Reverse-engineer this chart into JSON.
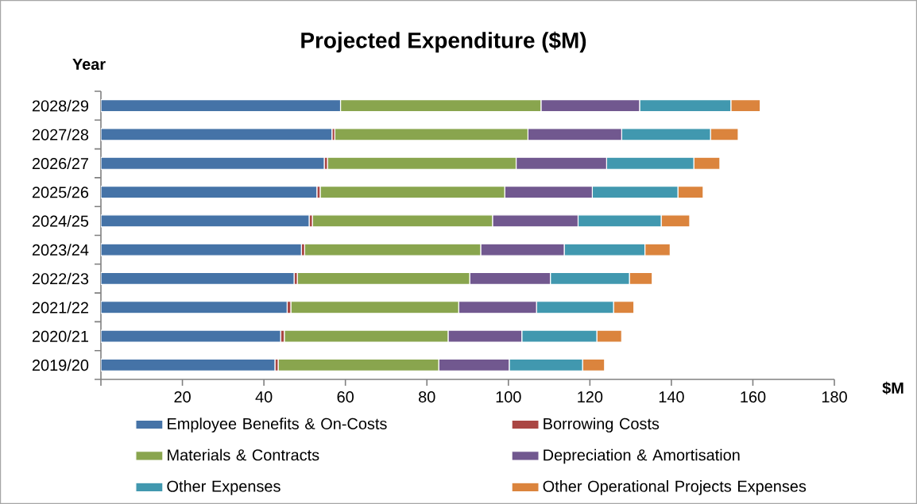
{
  "chart_data": {
    "type": "bar",
    "title": "Projected Expenditure ($M)",
    "xlabel": "$M",
    "ylabel": "Year",
    "orientation": "horizontal",
    "stacked": true,
    "legend": "bottom",
    "categories": [
      "2028/29",
      "2027/28",
      "2026/27",
      "2025/26",
      "2024/25",
      "2023/24",
      "2022/23",
      "2021/22",
      "2020/21",
      "2019/20"
    ],
    "xlim": [
      0,
      180
    ],
    "xticks": [
      {
        "value": 0,
        "label": null
      },
      20,
      40,
      60,
      80,
      100,
      120,
      140,
      160,
      180
    ],
    "series": [
      {
        "name": "Employee Benefits & On-Costs",
        "color": "#4573a7",
        "values": [
          58.8,
          56.7,
          54.8,
          53.0,
          51.1,
          49.2,
          47.4,
          45.7,
          44.1,
          42.7
        ]
      },
      {
        "name": "Borrowing Costs",
        "color": "#aa4643",
        "values": [
          0,
          0.7,
          0.8,
          0.8,
          0.8,
          0.8,
          0.8,
          0.9,
          0.9,
          0.8
        ]
      },
      {
        "name": "Materials & Contracts",
        "color": "#89a54e",
        "values": [
          49.2,
          47.4,
          46.3,
          45.3,
          44.2,
          43.2,
          42.3,
          41.2,
          40.2,
          39.4
        ]
      },
      {
        "name": "Depreciation & Amortisation",
        "color": "#71588f",
        "values": [
          24.2,
          23.0,
          22.2,
          21.5,
          21.0,
          20.5,
          19.8,
          19.1,
          18.1,
          17.3
        ]
      },
      {
        "name": "Other Expenses",
        "color": "#4198af",
        "values": [
          22.4,
          21.8,
          21.4,
          21.0,
          20.4,
          19.8,
          19.4,
          18.9,
          18.4,
          18.0
        ]
      },
      {
        "name": "Other Operational Projects Expenses",
        "color": "#db843d",
        "values": [
          7.2,
          6.8,
          6.4,
          6.2,
          7.0,
          6.2,
          5.6,
          5.0,
          6.1,
          5.4
        ]
      }
    ]
  }
}
